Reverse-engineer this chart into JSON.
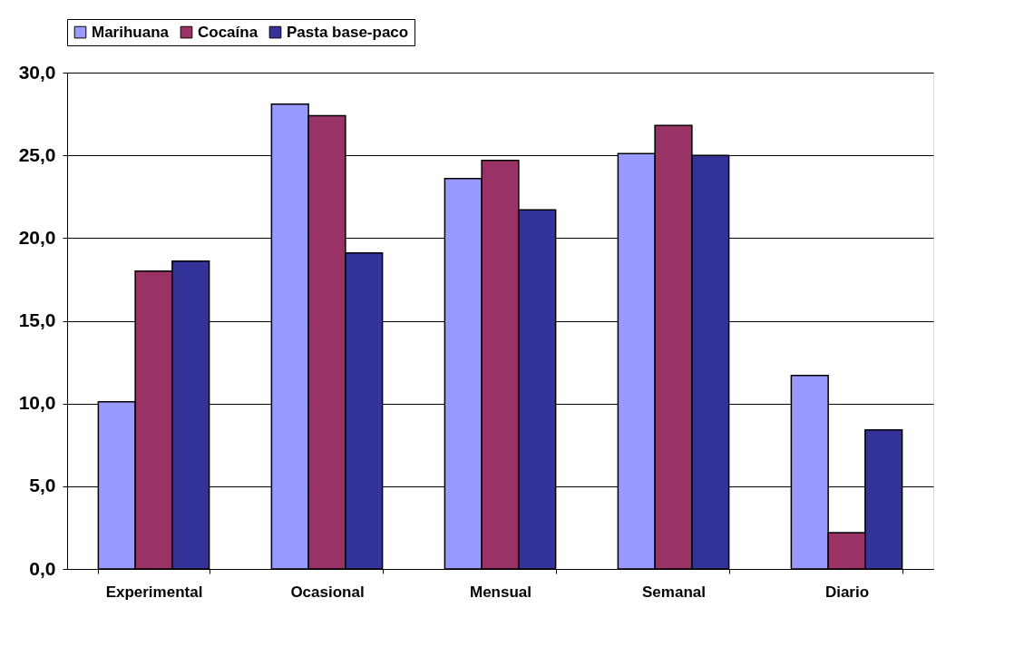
{
  "chart_data": {
    "type": "bar",
    "categories": [
      "Experimental",
      "Ocasional",
      "Mensual",
      "Semanal",
      "Diario"
    ],
    "series": [
      {
        "name": "Marihuana",
        "color": "#9999ff",
        "values": [
          10.1,
          28.1,
          23.6,
          25.1,
          11.7
        ]
      },
      {
        "name": "Cocaína",
        "color": "#993366",
        "values": [
          18.0,
          27.4,
          24.7,
          26.8,
          2.2
        ]
      },
      {
        "name": "Pasta base-paco",
        "color": "#333399",
        "values": [
          18.6,
          19.1,
          21.7,
          25.0,
          8.4
        ]
      }
    ],
    "ylim": [
      0,
      30
    ],
    "yticks": [
      {
        "value": 0,
        "label": "0,0"
      },
      {
        "value": 5,
        "label": "5,0"
      },
      {
        "value": 10,
        "label": "10,0"
      },
      {
        "value": 15,
        "label": "15,0"
      },
      {
        "value": 20,
        "label": "20,0"
      },
      {
        "value": 25,
        "label": "25,0"
      },
      {
        "value": 30,
        "label": "30,0"
      }
    ],
    "grid": "y",
    "legend": "top"
  }
}
